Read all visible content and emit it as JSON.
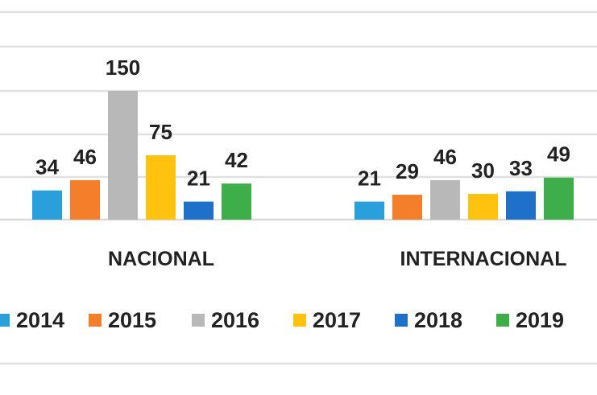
{
  "chart_data": {
    "type": "bar",
    "categories": [
      "NACIONAL",
      "INTERNACIONAL"
    ],
    "series": [
      {
        "name": "2014",
        "values": [
          34,
          21
        ],
        "color": "#29A0DC"
      },
      {
        "name": "2015",
        "values": [
          46,
          29
        ],
        "color": "#F47F2A"
      },
      {
        "name": "2016",
        "values": [
          150,
          46
        ],
        "color": "#B8B8B8"
      },
      {
        "name": "2017",
        "values": [
          75,
          30
        ],
        "color": "#FFC20E"
      },
      {
        "name": "2018",
        "values": [
          21,
          33
        ],
        "color": "#1F70C8"
      },
      {
        "name": "2019",
        "values": [
          42,
          49
        ],
        "color": "#3DAE4A"
      }
    ],
    "title": "",
    "xlabel": "",
    "ylabel": "",
    "ylim": [
      0,
      150
    ],
    "grid": true,
    "legend_position": "bottom",
    "data_labels": true
  }
}
